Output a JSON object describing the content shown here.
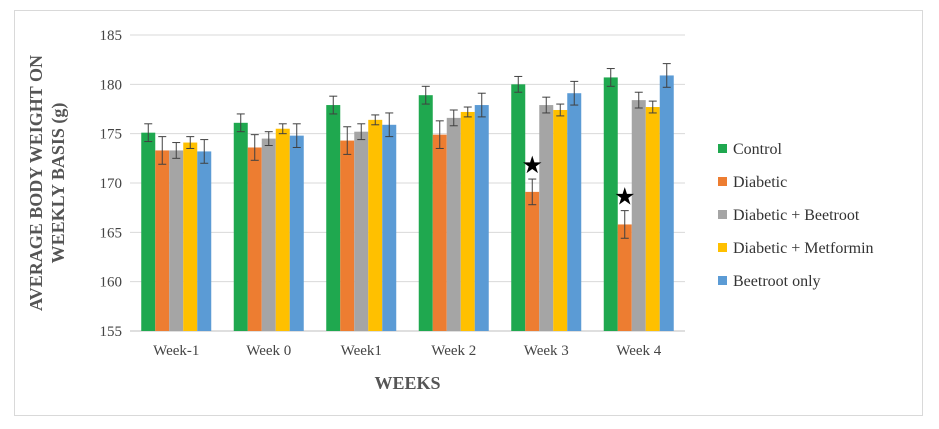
{
  "chart_data": {
    "type": "bar",
    "categories": [
      "Week-1",
      "Week 0",
      "Week1",
      "Week 2",
      "Week 3",
      "Week 4"
    ],
    "series": [
      {
        "name": "Control",
        "color": "#1fa84f",
        "values": [
          175.1,
          176.1,
          177.9,
          178.9,
          180.0,
          180.7
        ],
        "errors": [
          0.9,
          0.9,
          0.9,
          0.9,
          0.8,
          0.9
        ]
      },
      {
        "name": "Diabetic",
        "color": "#ed7d31",
        "values": [
          173.3,
          173.6,
          174.3,
          174.9,
          169.1,
          165.8
        ],
        "errors": [
          1.4,
          1.3,
          1.4,
          1.4,
          1.3,
          1.4
        ]
      },
      {
        "name": "Diabetic + Beetroot",
        "color": "#a5a5a5",
        "values": [
          173.3,
          174.5,
          175.2,
          176.6,
          177.9,
          178.4
        ],
        "errors": [
          0.8,
          0.7,
          0.8,
          0.8,
          0.8,
          0.8
        ]
      },
      {
        "name": "Diabetic + Metformin",
        "color": "#ffc000",
        "values": [
          174.1,
          175.5,
          176.4,
          177.2,
          177.4,
          177.7
        ],
        "errors": [
          0.6,
          0.5,
          0.5,
          0.5,
          0.6,
          0.6
        ]
      },
      {
        "name": "Beetroot only",
        "color": "#5b9bd5",
        "values": [
          173.2,
          174.8,
          175.9,
          177.9,
          179.1,
          180.9
        ],
        "errors": [
          1.2,
          1.2,
          1.2,
          1.2,
          1.2,
          1.2
        ]
      }
    ],
    "markers": [
      {
        "category": "Week 3",
        "series": "Diabetic",
        "symbol": "★"
      },
      {
        "category": "Week 4",
        "series": "Diabetic",
        "symbol": "★"
      }
    ],
    "ylim": [
      155,
      185
    ],
    "yticks": [
      155,
      160,
      165,
      170,
      175,
      180,
      185
    ],
    "xlabel": "WEEKS",
    "ylabel_lines": [
      "AVERAGE BODY WEIGHT ON",
      "WEEKLY BASIS (g)"
    ],
    "legend_position": "right",
    "grid": true
  }
}
